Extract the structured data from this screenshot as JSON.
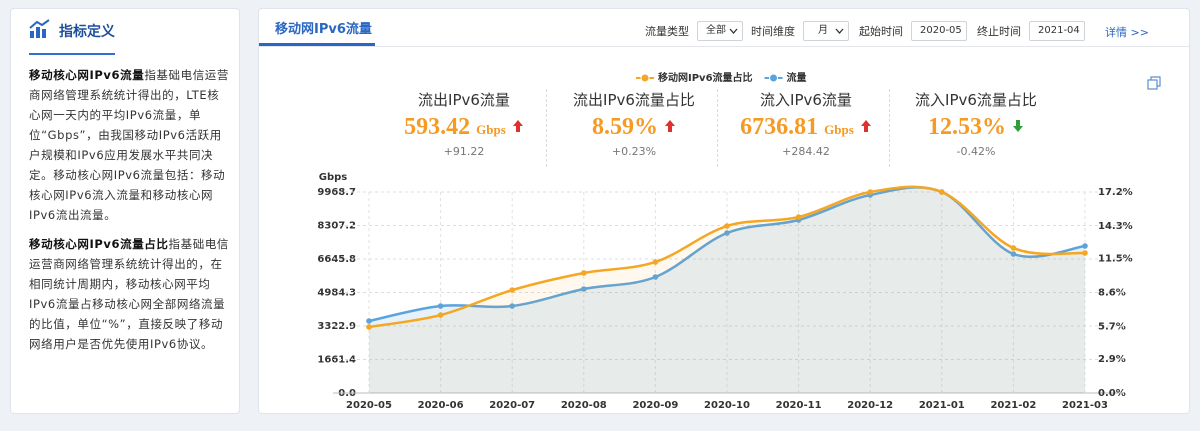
{
  "sidebar": {
    "title": "指标定义",
    "paragraphs": [
      {
        "term": "移动核心网IPv6流量",
        "text": "指基础电信运营商网络管理系统统计得出的，LTE核心网一天内的平均IPv6流量，单位“Gbps”，由我国移动IPv6活跃用户规模和IPv6应用发展水平共同决定。移动核心网IPv6流量包括：移动核心网IPv6流入流量和移动核心网IPv6流出流量。"
      },
      {
        "term": "移动核心网IPv6流量占比",
        "text": "指基础电信运营商网络管理系统统计得出的，在相同统计周期内，移动核心网平均IPv6流量占移动核心网全部网络流量的比值，单位“%”，直接反映了移动网络用户是否优先使用IPv6协议。"
      }
    ]
  },
  "header": {
    "tab": "移动网IPv6流量",
    "filters": [
      {
        "label": "流量类型",
        "value": "全部"
      },
      {
        "label": "时间维度",
        "value": "月"
      },
      {
        "label": "起始时间",
        "value": "2020-05"
      },
      {
        "label": "终止时间",
        "value": "2021-04"
      }
    ],
    "link": "详情 >>"
  },
  "kpis": [
    {
      "label": "流出IPv6流量",
      "value": "593.42",
      "unit": "Gbps",
      "trend": "up",
      "change": "+91.22"
    },
    {
      "label": "流出IPv6流量占比",
      "value": "8.59%",
      "trend": "up",
      "change": "+0.23%"
    },
    {
      "label": "流入IPv6流量",
      "value": "6736.81",
      "unit": "Gbps",
      "trend": "up",
      "change": "+284.42"
    },
    {
      "label": "流入IPv6流量占比",
      "value": "12.53%",
      "trend": "down",
      "change": "-0.42%"
    }
  ],
  "chart_data": {
    "type": "line",
    "y_unit": "Gbps",
    "categories": [
      "2020-05",
      "2020-06",
      "2020-07",
      "2020-08",
      "2020-09",
      "2020-10",
      "2020-11",
      "2020-12",
      "2021-01",
      "2021-02",
      "2021-03"
    ],
    "series": [
      {
        "name": "移动网IPv6流量占比",
        "color": "#f5a623",
        "axis": "y2",
        "values": [
          5.65,
          6.67,
          8.81,
          10.27,
          11.21,
          14.29,
          15.06,
          17.2,
          17.2,
          12.41,
          11.98
        ]
      },
      {
        "name": "流量",
        "color": "#5ba3dc",
        "area": true,
        "values": [
          3571,
          4315,
          4315,
          5158,
          5753,
          7935,
          8580,
          9820,
          9968.7,
          6894,
          7291
        ]
      }
    ],
    "ylim": [
      0,
      9968.7
    ],
    "yticks": [
      {
        "value": 0,
        "label": "0.0"
      },
      1661.4,
      3322.9,
      4984.3,
      6645.8,
      8307.2,
      9968.7
    ],
    "y2lim": [
      0,
      17.2
    ],
    "y2ticks": [
      {
        "value": 0,
        "label": "0.0%"
      },
      {
        "value": 2.9,
        "label": "2.9%"
      },
      {
        "value": 5.7,
        "label": "5.7%"
      },
      {
        "value": 8.6,
        "label": "8.6%"
      },
      {
        "value": 11.5,
        "label": "11.5%"
      },
      {
        "value": 14.3,
        "label": "14.3%"
      },
      {
        "value": 17.2,
        "label": "17.2%"
      }
    ],
    "grid": true,
    "legend": "top"
  }
}
